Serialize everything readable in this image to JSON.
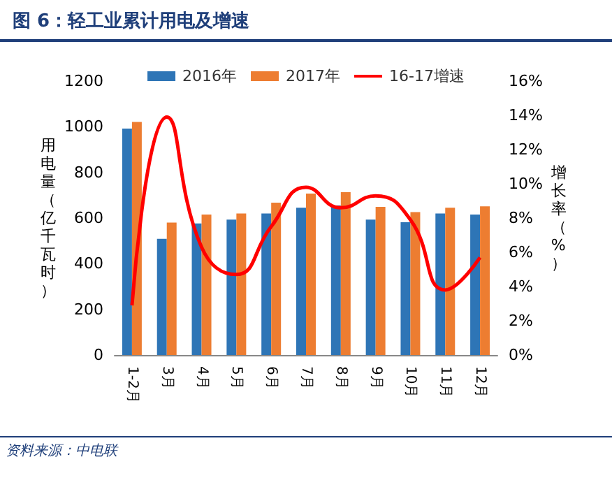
{
  "chart_data": {
    "type": "bar",
    "title": "图 6：轻工业累计用电及增速",
    "ylabel": "用电量（亿千瓦时）",
    "y2label": "增长率（%）",
    "annotations": [
      "资料来源：中电联"
    ],
    "categories": [
      "1-2月",
      "3月",
      "4月",
      "5月",
      "6月",
      "7月",
      "8月",
      "9月",
      "10月",
      "11月",
      "12月"
    ],
    "series": [
      {
        "name": "2016年",
        "color": "#2e75b6",
        "values": [
          992,
          509,
          576,
          593,
          620,
          645,
          655,
          593,
          582,
          620,
          615
        ]
      },
      {
        "name": "2017年",
        "color": "#ed7d31",
        "values": [
          1021,
          580,
          615,
          620,
          667,
          707,
          713,
          649,
          626,
          645,
          651
        ]
      },
      {
        "name": "16-17增速",
        "type": "line",
        "axis": "y2",
        "color": "#ff0000",
        "values": [
          2.9,
          13.9,
          6.3,
          4.7,
          7.5,
          9.8,
          8.6,
          9.3,
          7.9,
          3.8,
          5.7
        ]
      }
    ],
    "ylim": [
      0,
      1200
    ],
    "yticks": [
      0,
      200,
      400,
      600,
      800,
      1000,
      1200
    ],
    "y2lim": [
      0,
      16
    ],
    "y2ticks": [
      {
        "value": 0,
        "label": "0%"
      },
      {
        "value": 2,
        "label": "2%"
      },
      {
        "value": 4,
        "label": "4%"
      },
      {
        "value": 6,
        "label": "6%"
      },
      {
        "value": 8,
        "label": "8%"
      },
      {
        "value": 10,
        "label": "10%"
      },
      {
        "value": 12,
        "label": "12%"
      },
      {
        "value": 14,
        "label": "14%"
      },
      {
        "value": 16,
        "label": "16%"
      }
    ],
    "grid": false,
    "legend": "top",
    "marker": "none",
    "line_style": "solid"
  }
}
